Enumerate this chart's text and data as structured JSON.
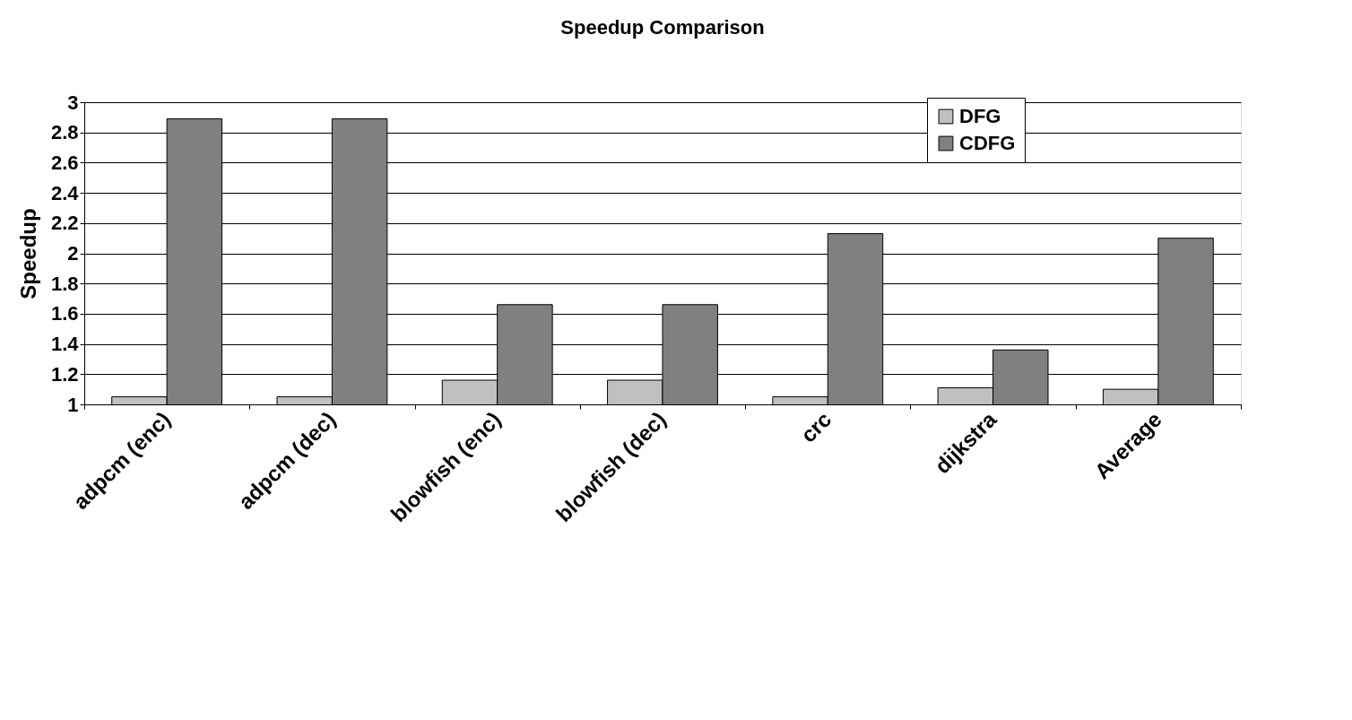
{
  "chart_data": {
    "type": "bar",
    "title": "Speedup Comparison",
    "ylabel": "Speedup",
    "categories": [
      "adpcm (enc)",
      "adpcm (dec)",
      "blowfish (enc)",
      "blowfish (dec)",
      "crc",
      "dijkstra",
      "Average"
    ],
    "series": [
      {
        "name": "DFG",
        "color": "#c0c0c0",
        "values": [
          1.05,
          1.05,
          1.16,
          1.16,
          1.05,
          1.11,
          1.1
        ]
      },
      {
        "name": "CDFG",
        "color": "#808080",
        "values": [
          2.89,
          2.89,
          1.66,
          1.66,
          2.13,
          1.36,
          2.1
        ]
      }
    ],
    "ylim": [
      1,
      3
    ],
    "yticks": [
      1,
      1.2,
      1.4,
      1.6,
      1.8,
      2,
      2.2,
      2.4,
      2.6,
      2.8,
      3
    ],
    "grid": "y",
    "legend": "top right"
  }
}
